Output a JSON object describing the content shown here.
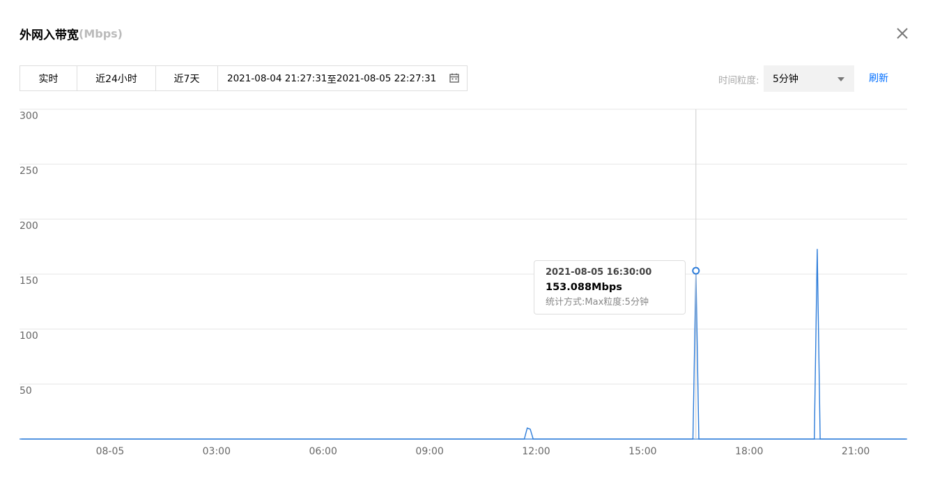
{
  "header": {
    "title": "外网入带宽",
    "unit": "(Mbps)"
  },
  "toolbar": {
    "realtime": "实时",
    "last24h": "近24小时",
    "last7d": "近7天",
    "range_start": "2021-08-04 21:27:31",
    "range_sep": "至",
    "range_end": "2021-08-05 22:27:31"
  },
  "granularity": {
    "label": "时间粒度:",
    "selected": "5分钟"
  },
  "refresh_label": "刷新",
  "tooltip": {
    "time": "2021-08-05 16:30:00",
    "value": "153.088Mbps",
    "method_label": "统计方式:",
    "method": "Max",
    "granularity_label": "粒度:",
    "granularity": "5分钟"
  },
  "colors": {
    "series": "#2b7bd9",
    "accent": "#006eff",
    "grid": "#e6e6e6"
  },
  "icons": {
    "close": "close-icon",
    "calendar": "calendar-icon",
    "dropdown": "chevron-down-icon"
  },
  "chart_data": {
    "type": "line",
    "xlabel": "",
    "ylabel": "",
    "ylim": [
      0,
      300
    ],
    "yticks": [
      50,
      100,
      150,
      200,
      250,
      300
    ],
    "xlim": [
      "2021-08-04 21:27",
      "2021-08-05 22:27"
    ],
    "xticks": [
      {
        "label": "08-05",
        "time": "2021-08-05 00:00"
      },
      {
        "label": "03:00",
        "time": "2021-08-05 03:00"
      },
      {
        "label": "06:00",
        "time": "2021-08-05 06:00"
      },
      {
        "label": "09:00",
        "time": "2021-08-05 09:00"
      },
      {
        "label": "12:00",
        "time": "2021-08-05 12:00"
      },
      {
        "label": "15:00",
        "time": "2021-08-05 15:00"
      },
      {
        "label": "18:00",
        "time": "2021-08-05 18:00"
      },
      {
        "label": "21:00",
        "time": "2021-08-05 21:00"
      }
    ],
    "grid": true,
    "series": [
      {
        "points": [
          [
            "2021-08-04 21:30",
            0
          ],
          [
            "2021-08-05 11:40",
            0
          ],
          [
            "2021-08-05 11:45",
            10
          ],
          [
            "2021-08-05 11:50",
            9
          ],
          [
            "2021-08-05 11:55",
            0
          ],
          [
            "2021-08-05 16:25",
            0
          ],
          [
            "2021-08-05 16:30",
            153.088
          ],
          [
            "2021-08-05 16:35",
            0
          ],
          [
            "2021-08-05 19:50",
            0
          ],
          [
            "2021-08-05 19:55",
            173
          ],
          [
            "2021-08-05 20:00",
            0
          ],
          [
            "2021-08-05 22:25",
            0
          ]
        ]
      }
    ],
    "highlight": {
      "time": "2021-08-05 16:30",
      "value": 153.088
    }
  }
}
